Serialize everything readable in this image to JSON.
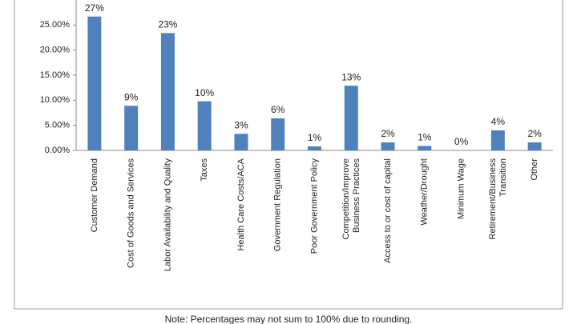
{
  "chart_data": {
    "type": "bar",
    "categories": [
      "Customer Demand",
      "Cost of Goods and Services",
      "Labor Availability and Quality",
      "Taxes",
      "Health Care Costs/ACA",
      "Government Regulation",
      "Poor Government Policy",
      "Competition/Improve\nBusiness Practices",
      "Access to or cost of capital",
      "Weather/Drought",
      "Minimum Wage",
      "Retirement/Business\nTransition",
      "Other"
    ],
    "values": [
      26.7,
      8.9,
      23.4,
      9.8,
      3.3,
      6.4,
      0.8,
      12.9,
      1.6,
      0.9,
      0,
      4.0,
      1.6
    ],
    "value_labels": [
      "27%",
      "9%",
      "23%",
      "10%",
      "3%",
      "6%",
      "1%",
      "13%",
      "2%",
      "1%",
      "0%",
      "4%",
      "2%"
    ],
    "color": "#4f81bd",
    "ylim": [
      0,
      30
    ],
    "yticks": [
      {
        "value": 0,
        "label": "0.00%"
      },
      {
        "value": 5,
        "label": "5.00%"
      },
      {
        "value": 10,
        "label": "10.00%"
      },
      {
        "value": 15,
        "label": "15.00%"
      },
      {
        "value": 20,
        "label": "20.00%"
      },
      {
        "value": 25,
        "label": "25.00%"
      }
    ],
    "note": "Note: Percentages may not sum to 100% due to rounding."
  }
}
